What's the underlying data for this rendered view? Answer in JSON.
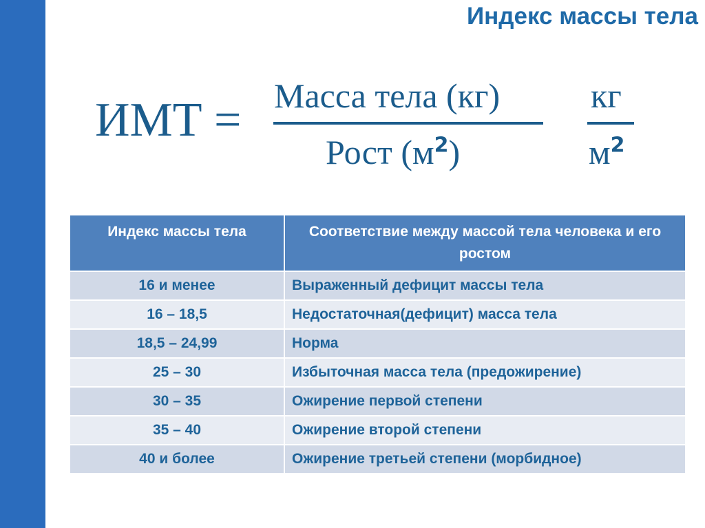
{
  "title": "Индекс массы тела",
  "formula": {
    "lhs": "ИМТ =",
    "numerator": "Масса тела (кг)",
    "denominator": "Рост (м",
    "den_exp": "2",
    "den_close": ")",
    "unit_num": "кг",
    "unit_den": "м",
    "unit_exp": "2"
  },
  "table": {
    "headers": [
      "Индекс массы тела",
      "Соответствие между массой тела человека и его ростом"
    ],
    "rows": [
      [
        "16 и менее",
        "Выраженный дефицит массы тела"
      ],
      [
        "16 – 18,5",
        "Недостаточная(дефицит) масса тела"
      ],
      [
        "18,5 – 24,99",
        "Норма"
      ],
      [
        "25 – 30",
        "Избыточная масса тела (предожирение)"
      ],
      [
        "30 – 35",
        "Ожирение первой степени"
      ],
      [
        "35 – 40",
        "Ожирение второй степени"
      ],
      [
        "40 и более",
        "Ожирение третьей степени (морбидное)"
      ]
    ]
  },
  "colors": {
    "sidebar": "#2b6cbd",
    "header": "#4f81bd",
    "text": "#1e6399"
  }
}
